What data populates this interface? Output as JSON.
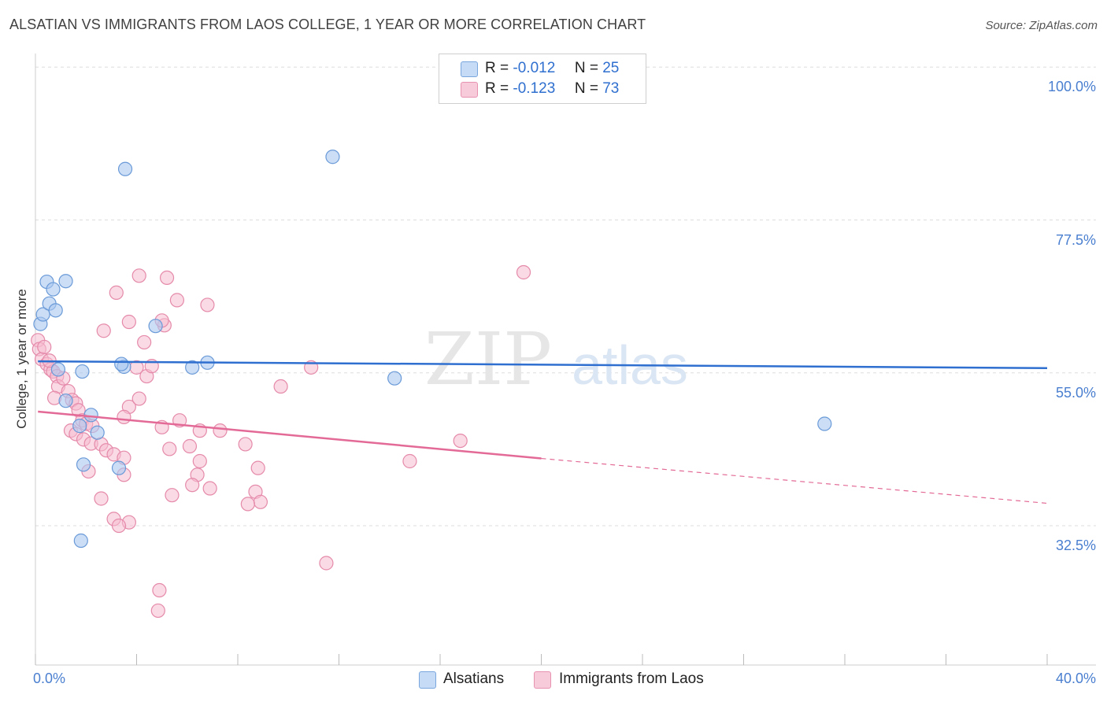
{
  "title": "ALSATIAN VS IMMIGRANTS FROM LAOS COLLEGE, 1 YEAR OR MORE CORRELATION CHART",
  "source": "Source: ZipAtlas.com",
  "watermark": {
    "zip": "ZIP",
    "atlas": "atlas"
  },
  "legend": {
    "r_label": "R =",
    "n_label": "N =",
    "alsatians": {
      "r": "-0.012",
      "n": "25"
    },
    "laos": {
      "r": "-0.123",
      "n": "73"
    }
  },
  "bottom_legend": {
    "alsatians": "Alsatians",
    "laos": "Immigrants from Laos"
  },
  "colors": {
    "blue_fill": "#aac8f0",
    "blue_stroke": "#6a9ad8",
    "blue_line": "#2f6fcf",
    "pink_fill": "#f5bcd0",
    "pink_stroke": "#e58aaa",
    "pink_line": "#e36a96",
    "tick_text": "#4a7fd0",
    "grid": "#dddddd"
  },
  "chart_data": {
    "type": "scatter",
    "title": "ALSATIAN VS IMMIGRANTS FROM LAOS COLLEGE, 1 YEAR OR MORE CORRELATION CHART",
    "xlabel": "",
    "ylabel": "College, 1 year or more",
    "xlim": [
      0,
      40
    ],
    "ylim": [
      12,
      102
    ],
    "x_tick_labels": [
      "0.0%",
      "40.0%"
    ],
    "y_ticks": [
      100,
      77.5,
      55,
      32.5
    ],
    "y_tick_labels": [
      "100.0%",
      "77.5%",
      "55.0%",
      "32.5%"
    ],
    "grid": true,
    "series": [
      {
        "name": "Alsatians",
        "r": -0.012,
        "n": 25,
        "points": [
          [
            0.2,
            62.2
          ],
          [
            0.3,
            63.6
          ],
          [
            0.45,
            68.4
          ],
          [
            0.55,
            65.2
          ],
          [
            0.7,
            67.3
          ],
          [
            0.8,
            64.2
          ],
          [
            1.2,
            68.5
          ],
          [
            0.9,
            55.5
          ],
          [
            1.85,
            55.2
          ],
          [
            3.5,
            55.9
          ],
          [
            3.4,
            56.3
          ],
          [
            4.75,
            61.9
          ],
          [
            6.2,
            55.8
          ],
          [
            6.8,
            56.5
          ],
          [
            2.45,
            46.2
          ],
          [
            2.2,
            48.8
          ],
          [
            1.75,
            47.2
          ],
          [
            3.3,
            41.0
          ],
          [
            1.9,
            41.5
          ],
          [
            1.8,
            30.3
          ],
          [
            11.75,
            86.8
          ],
          [
            3.55,
            85.0
          ],
          [
            14.2,
            54.2
          ],
          [
            31.2,
            47.5
          ],
          [
            1.2,
            50.9
          ]
        ],
        "trend": {
          "x": [
            0.1,
            40.0
          ],
          "y": [
            56.7,
            55.7
          ]
        }
      },
      {
        "name": "Immigrants from Laos",
        "r": -0.123,
        "n": 73,
        "points": [
          [
            0.1,
            59.8
          ],
          [
            0.15,
            58.5
          ],
          [
            0.25,
            57.0
          ],
          [
            0.35,
            58.8
          ],
          [
            0.45,
            56.3
          ],
          [
            0.6,
            55.5
          ],
          [
            0.7,
            55.2
          ],
          [
            0.85,
            54.5
          ],
          [
            0.9,
            53.0
          ],
          [
            1.1,
            54.2
          ],
          [
            0.75,
            51.3
          ],
          [
            1.3,
            52.3
          ],
          [
            1.45,
            51.0
          ],
          [
            1.6,
            50.5
          ],
          [
            1.7,
            49.5
          ],
          [
            1.85,
            48.0
          ],
          [
            2.0,
            47.5
          ],
          [
            2.25,
            47.2
          ],
          [
            1.4,
            46.5
          ],
          [
            1.6,
            46.0
          ],
          [
            1.9,
            45.2
          ],
          [
            2.2,
            44.6
          ],
          [
            2.6,
            44.5
          ],
          [
            2.8,
            43.6
          ],
          [
            3.1,
            43.0
          ],
          [
            3.5,
            42.5
          ],
          [
            2.1,
            40.5
          ],
          [
            3.5,
            40.0
          ],
          [
            2.6,
            36.5
          ],
          [
            3.1,
            33.5
          ],
          [
            3.7,
            33.0
          ],
          [
            3.3,
            32.5
          ],
          [
            2.7,
            61.2
          ],
          [
            4.0,
            55.8
          ],
          [
            4.4,
            54.5
          ],
          [
            4.6,
            56.0
          ],
          [
            4.3,
            59.5
          ],
          [
            3.7,
            62.5
          ],
          [
            4.1,
            69.3
          ],
          [
            5.2,
            69.0
          ],
          [
            5.6,
            65.7
          ],
          [
            5.1,
            62.0
          ],
          [
            6.8,
            65.0
          ],
          [
            3.2,
            66.8
          ],
          [
            3.7,
            50.0
          ],
          [
            4.1,
            51.2
          ],
          [
            3.5,
            48.5
          ],
          [
            5.0,
            47.0
          ],
          [
            5.7,
            48.0
          ],
          [
            6.5,
            46.5
          ],
          [
            7.3,
            46.5
          ],
          [
            5.3,
            43.8
          ],
          [
            6.1,
            44.2
          ],
          [
            6.5,
            42.0
          ],
          [
            6.4,
            40.0
          ],
          [
            6.9,
            38.0
          ],
          [
            5.4,
            37.0
          ],
          [
            6.2,
            38.5
          ],
          [
            8.3,
            44.5
          ],
          [
            8.8,
            41.0
          ],
          [
            8.7,
            37.5
          ],
          [
            8.9,
            36.0
          ],
          [
            8.4,
            35.7
          ],
          [
            9.7,
            53.0
          ],
          [
            10.9,
            55.8
          ],
          [
            11.5,
            27.0
          ],
          [
            4.9,
            23.0
          ],
          [
            4.85,
            20.0
          ],
          [
            14.8,
            42.0
          ],
          [
            16.8,
            45.0
          ],
          [
            19.3,
            69.8
          ],
          [
            5.0,
            62.7
          ],
          [
            0.55,
            56.8
          ]
        ],
        "trend": {
          "x": [
            0.1,
            20.0
          ],
          "y": [
            49.3,
            42.4
          ]
        },
        "trend_extrapolated": {
          "x": [
            20.0,
            40.0
          ],
          "y": [
            42.4,
            35.8
          ]
        }
      }
    ]
  }
}
